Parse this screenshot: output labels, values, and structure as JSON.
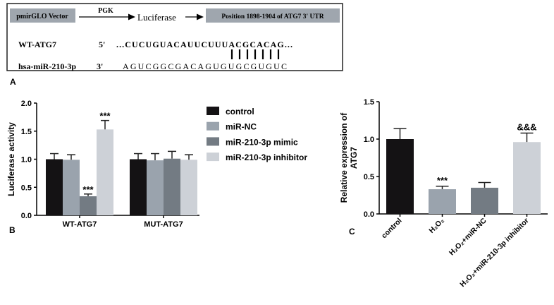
{
  "panel_a": {
    "label": "A",
    "vector_box": "pmirGLO Vector",
    "promoter": "PGK",
    "reporter": "Luciferase",
    "utr_box": "Position 1898-1904 of ATG7  3' UTR",
    "wt_name": "WT-ATG7",
    "wt_end": "5'",
    "wt_seq": "...CUCUGUACAUUCUUUACGCACAG...",
    "mir_name": "hsa-miR-210-3p",
    "mir_end": "3'",
    "mir_seq": "AGUCGGCGACAGUGUGCGUGUC",
    "pair_count": 7
  },
  "colors": {
    "control": "#141214",
    "miR-NC": "#9aa3ad",
    "mimic": "#737b83",
    "inhibitor": "#cdd1d7"
  },
  "chart_data": [
    {
      "type": "bar",
      "label": "B",
      "ylabel": "Luciferase activity",
      "ylim": [
        0,
        2.0
      ],
      "yticks": [
        "0.0",
        "0.5",
        "1.0",
        "1.5",
        "2.0"
      ],
      "categories": [
        "WT-ATG7",
        "MUT-ATG7"
      ],
      "legend_position": "right",
      "series": [
        {
          "name": "control",
          "color_key": "control",
          "values": [
            1.0,
            1.0
          ],
          "error": [
            0.1,
            0.1
          ],
          "annotations": [
            "",
            ""
          ]
        },
        {
          "name": "miR-NC",
          "color_key": "miR-NC",
          "values": [
            0.99,
            0.98
          ],
          "error": [
            0.09,
            0.12
          ],
          "annotations": [
            "",
            ""
          ]
        },
        {
          "name": "miR-210-3p mimic",
          "color_key": "mimic",
          "values": [
            0.34,
            1.01
          ],
          "error": [
            0.04,
            0.13
          ],
          "annotations": [
            "***",
            ""
          ]
        },
        {
          "name": "miR-210-3p inhibitor",
          "color_key": "inhibitor",
          "values": [
            1.53,
            0.99
          ],
          "error": [
            0.16,
            0.09
          ],
          "annotations": [
            "***",
            ""
          ]
        }
      ]
    },
    {
      "type": "bar",
      "label": "C",
      "ylabel": "Relative expression of ATG7",
      "ylabel_lines": [
        "Relative expression of",
        "ATG7"
      ],
      "ylim": [
        0,
        1.5
      ],
      "yticks": [
        "0.0",
        "0.5",
        "1.0",
        "1.5"
      ],
      "categories": [
        "control",
        "H₂O₂",
        "H₂O₂+miR-NC",
        "H₂O₂+miR-210-3p inhibitor"
      ],
      "values": [
        1.0,
        0.33,
        0.35,
        0.96
      ],
      "error": [
        0.14,
        0.04,
        0.07,
        0.12
      ],
      "color_keys": [
        "control",
        "miR-NC",
        "mimic",
        "inhibitor"
      ],
      "annotations": [
        "",
        "***",
        "",
        "&&&"
      ]
    }
  ]
}
